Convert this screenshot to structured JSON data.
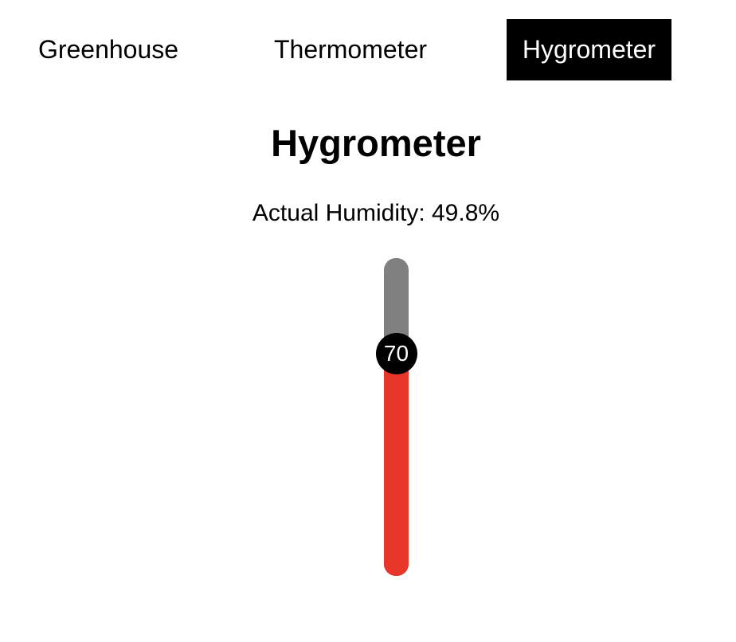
{
  "nav": {
    "tabs": [
      {
        "label": "Greenhouse",
        "active": false
      },
      {
        "label": "Thermometer",
        "active": false
      },
      {
        "label": "Hygrometer",
        "active": true
      }
    ]
  },
  "page": {
    "title": "Hygrometer",
    "reading": "Actual Humidity: 49.8%"
  },
  "slider": {
    "value": "70",
    "value_number": 70,
    "min": 0,
    "max": 100,
    "fill_color": "#e8362a",
    "track_color": "#808080",
    "thumb_color": "#000000"
  }
}
